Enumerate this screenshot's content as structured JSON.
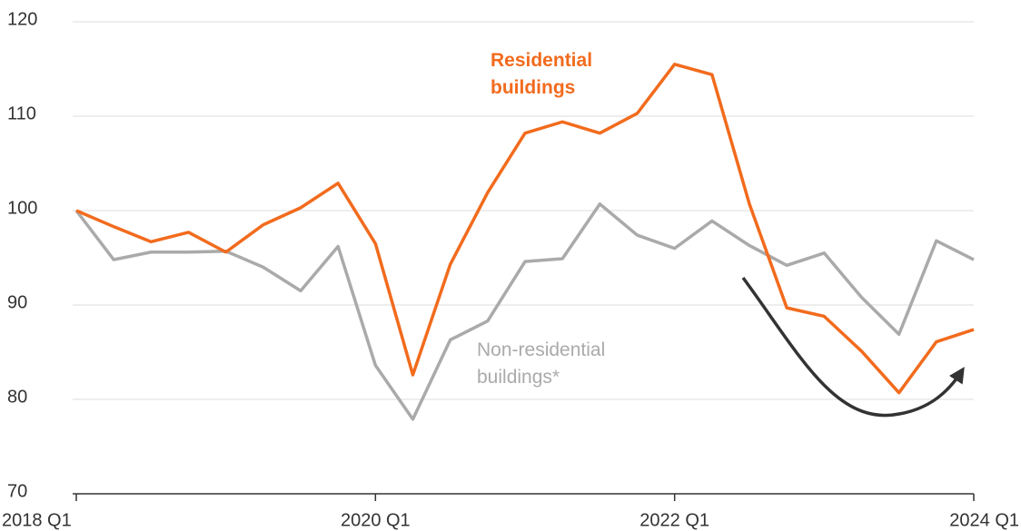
{
  "chart_data": {
    "type": "line",
    "categories": [
      "2018 Q1",
      null,
      null,
      null,
      null,
      null,
      null,
      null,
      "2020 Q1",
      null,
      null,
      null,
      null,
      null,
      null,
      null,
      "2022 Q1",
      null,
      null,
      null,
      null,
      null,
      null,
      null,
      "2024 Q1"
    ],
    "series": [
      {
        "name": "Residential buildings",
        "color": "#f26b1d",
        "values": [
          100,
          98.3,
          96.7,
          97.7,
          95.6,
          98.5,
          100.3,
          102.9,
          96.5,
          82.6,
          94.3,
          101.9,
          108.2,
          109.4,
          108.2,
          110.3,
          115.5,
          114.4,
          100.7,
          89.7,
          88.8,
          85.1,
          80.7,
          86.1,
          87.4
        ]
      },
      {
        "name": "Non-residential buildings*",
        "color": "#aaaaaa",
        "values": [
          100,
          94.8,
          95.6,
          95.6,
          95.7,
          94.0,
          91.5,
          96.2,
          83.6,
          77.9,
          86.3,
          88.3,
          94.6,
          94.9,
          100.7,
          97.4,
          96.0,
          98.9,
          96.3,
          94.2,
          95.5,
          90.8,
          86.9,
          96.8,
          94.8
        ]
      }
    ],
    "ylim": [
      70,
      120
    ],
    "yticks": [
      70,
      80,
      90,
      100,
      110,
      120
    ],
    "grid": true
  }
}
